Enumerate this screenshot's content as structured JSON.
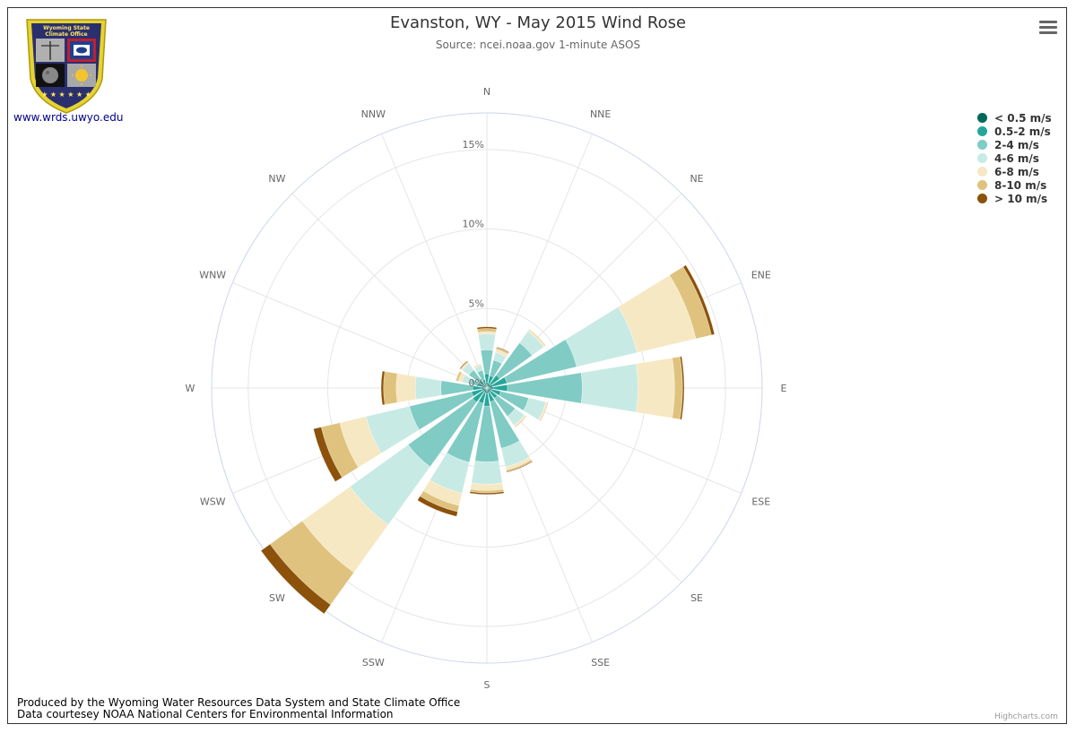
{
  "header": {
    "title": "Evanston, WY - May 2015 Wind Rose",
    "subtitle": "Source: ncei.noaa.gov 1-minute ASOS"
  },
  "logo": {
    "text_top": "Wyoming State",
    "text_bottom": "Climate Office",
    "link": "www.wrds.uwyo.edu"
  },
  "credits": {
    "line1": "Produced by the Wyoming Water Resources Data System and State Climate Office",
    "line2": "Data courtesey NOAA National Centers for Environmental Information",
    "highcharts": "Highcharts.com"
  },
  "menu": {
    "icon": "hamburger-menu-icon"
  },
  "chart_data": {
    "type": "bar",
    "polar": true,
    "stacking": "normal",
    "title": "Evanston, WY - May 2015 Wind Rose",
    "subtitle": "Source: ncei.noaa.gov 1-minute ASOS",
    "categories": [
      "N",
      "NNE",
      "NE",
      "ENE",
      "E",
      "ESE",
      "SE",
      "SSE",
      "S",
      "SSW",
      "SW",
      "WSW",
      "W",
      "WNW",
      "NW",
      "NNW"
    ],
    "y_tick_values": [
      0,
      5,
      10,
      15
    ],
    "y_tick_labels": [
      "0%",
      "5%",
      "10%",
      "15%"
    ],
    "ylim": [
      0,
      17.3
    ],
    "legend_position": "top-right",
    "series": [
      {
        "name": "< 0.5 m/s",
        "color": "#00695c",
        "values": [
          0.35,
          0.3,
          0.3,
          0.4,
          0.4,
          0.3,
          0.3,
          0.3,
          0.35,
          0.3,
          0.3,
          0.3,
          0.35,
          0.25,
          0.25,
          0.25
        ]
      },
      {
        "name": "0.5-2 m/s",
        "color": "#26a69a",
        "values": [
          0.55,
          0.5,
          0.7,
          0.9,
          0.9,
          0.6,
          0.5,
          0.6,
          0.8,
          0.7,
          0.8,
          0.7,
          0.55,
          0.35,
          0.35,
          0.3
        ]
      },
      {
        "name": "2-4 m/s",
        "color": "#80cbc4",
        "values": [
          1.5,
          1.0,
          2.5,
          4.5,
          4.7,
          1.8,
          1.4,
          3.0,
          3.5,
          3.8,
          5.0,
          4.0,
          2.0,
          0.5,
          0.8,
          0.6
        ]
      },
      {
        "name": "4-6 m/s",
        "color": "#c7eae5",
        "values": [
          1.0,
          0.5,
          0.9,
          3.9,
          3.5,
          1.1,
          0.7,
          1.2,
          1.4,
          2.0,
          4.5,
          2.8,
          1.6,
          0.5,
          0.5,
          0.3
        ]
      },
      {
        "name": "6-8 m/s",
        "color": "#f6e8c3",
        "values": [
          0.15,
          0.2,
          0.1,
          3.8,
          2.3,
          0.1,
          0.1,
          0.2,
          0.4,
          0.8,
          3.7,
          1.7,
          1.2,
          0.25,
          0.1,
          0.05
        ]
      },
      {
        "name": "8-10 m/s",
        "color": "#dfc27d",
        "values": [
          0.2,
          0.1,
          0.05,
          1.0,
          0.5,
          0.05,
          0.05,
          0.1,
          0.15,
          0.4,
          2.5,
          1.2,
          0.8,
          0.15,
          0.05,
          0.05
        ]
      },
      {
        "name": "> 10 m/s",
        "color": "#8c510a",
        "values": [
          0.1,
          0.05,
          0.0,
          0.2,
          0.1,
          0.0,
          0.0,
          0.05,
          0.1,
          0.3,
          0.7,
          0.5,
          0.15,
          0.0,
          0.05,
          0.0
        ]
      }
    ]
  }
}
